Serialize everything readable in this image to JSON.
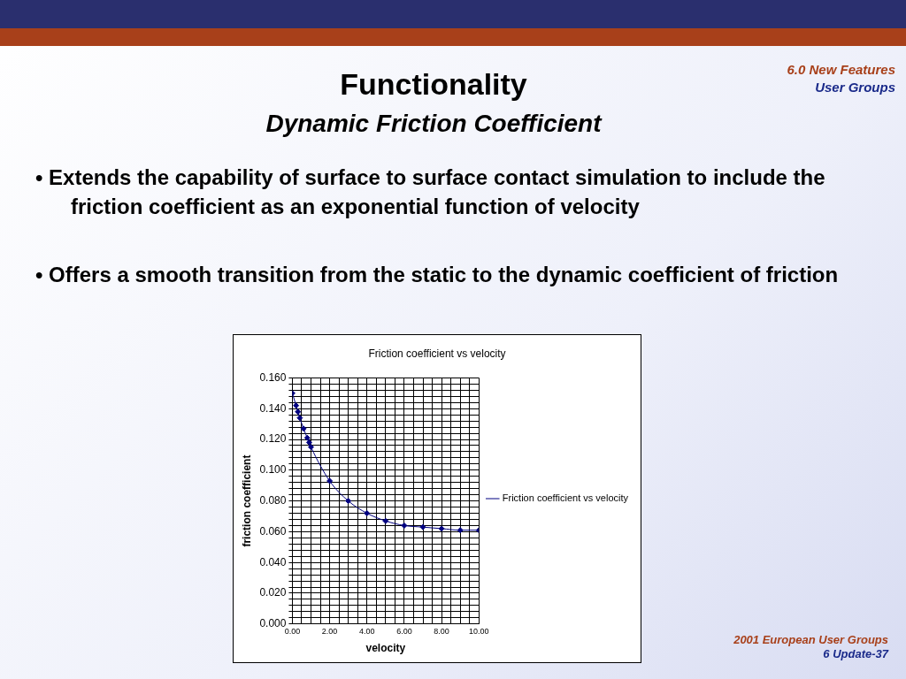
{
  "chart_data": {
    "type": "line",
    "title": "Friction coefficient vs velocity",
    "xlabel": "velocity",
    "ylabel": "friction coefficient",
    "annotations": [
      "Functionality",
      "Dynamic Friction Coefficient",
      "• Extends the capability of surface to surface contact simulation to include the friction coefficient as an exponential function of velocity",
      "• Offers a smooth transition from the static to the dynamic coefficient of friction",
      "6.0 New Features",
      "User Groups",
      "2001 European User Groups",
      "6 Update-37"
    ],
    "series": [
      {
        "name": "Friction coefficient vs velocity",
        "color": "#000080",
        "x": [
          0,
          0.2,
          0.3,
          0.4,
          0.6,
          0.8,
          0.9,
          1.0,
          2,
          3,
          4,
          5,
          6,
          7,
          8,
          9,
          10
        ],
        "values": [
          0.15,
          0.142,
          0.138,
          0.134,
          0.127,
          0.121,
          0.118,
          0.115,
          0.093,
          0.08,
          0.072,
          0.067,
          0.064,
          0.063,
          0.062,
          0.061,
          0.061
        ]
      }
    ],
    "xlim": [
      0,
      10
    ],
    "xticks": [
      {
        "value": 0,
        "label": "0.00"
      },
      {
        "value": 0.5,
        "label": null
      },
      {
        "value": 1,
        "label": null
      },
      {
        "value": 1.5,
        "label": null
      },
      {
        "value": 2,
        "label": "2.00"
      },
      {
        "value": 2.5,
        "label": null
      },
      {
        "value": 3,
        "label": null
      },
      {
        "value": 3.5,
        "label": null
      },
      {
        "value": 4,
        "label": "4.00"
      },
      {
        "value": 4.5,
        "label": null
      },
      {
        "value": 5,
        "label": null
      },
      {
        "value": 5.5,
        "label": null
      },
      {
        "value": 6,
        "label": "6.00"
      },
      {
        "value": 6.5,
        "label": null
      },
      {
        "value": 7,
        "label": null
      },
      {
        "value": 7.5,
        "label": null
      },
      {
        "value": 8,
        "label": "8.00"
      },
      {
        "value": 8.5,
        "label": null
      },
      {
        "value": 9,
        "label": null
      },
      {
        "value": 9.5,
        "label": null
      },
      {
        "value": 10,
        "label": "10.00"
      }
    ],
    "ylim": [
      0,
      0.16
    ],
    "yticks": [
      {
        "value": 0,
        "label": "0.000"
      },
      {
        "value": 0.004,
        "label": null
      },
      {
        "value": 0.008,
        "label": null
      },
      {
        "value": 0.012,
        "label": null
      },
      {
        "value": 0.016,
        "label": null
      },
      {
        "value": 0.02,
        "label": "0.020"
      },
      {
        "value": 0.024,
        "label": null
      },
      {
        "value": 0.028,
        "label": null
      },
      {
        "value": 0.032,
        "label": null
      },
      {
        "value": 0.036,
        "label": null
      },
      {
        "value": 0.04,
        "label": "0.040"
      },
      {
        "value": 0.044,
        "label": null
      },
      {
        "value": 0.048,
        "label": null
      },
      {
        "value": 0.052,
        "label": null
      },
      {
        "value": 0.056,
        "label": null
      },
      {
        "value": 0.06,
        "label": "0.060"
      },
      {
        "value": 0.064,
        "label": null
      },
      {
        "value": 0.068,
        "label": null
      },
      {
        "value": 0.072,
        "label": null
      },
      {
        "value": 0.076,
        "label": null
      },
      {
        "value": 0.08,
        "label": "0.080"
      },
      {
        "value": 0.084,
        "label": null
      },
      {
        "value": 0.088,
        "label": null
      },
      {
        "value": 0.092,
        "label": null
      },
      {
        "value": 0.096,
        "label": null
      },
      {
        "value": 0.1,
        "label": "0.100"
      },
      {
        "value": 0.104,
        "label": null
      },
      {
        "value": 0.108,
        "label": null
      },
      {
        "value": 0.112,
        "label": null
      },
      {
        "value": 0.116,
        "label": null
      },
      {
        "value": 0.12,
        "label": "0.120"
      },
      {
        "value": 0.124,
        "label": null
      },
      {
        "value": 0.128,
        "label": null
      },
      {
        "value": 0.132,
        "label": null
      },
      {
        "value": 0.136,
        "label": null
      },
      {
        "value": 0.14,
        "label": "0.140"
      },
      {
        "value": 0.144,
        "label": null
      },
      {
        "value": 0.148,
        "label": null
      },
      {
        "value": 0.152,
        "label": null
      },
      {
        "value": 0.156,
        "label": null
      },
      {
        "value": 0.16,
        "label": "0.160"
      }
    ],
    "grid": true,
    "legend": "right",
    "marker": "diamond",
    "line_style": "solid"
  }
}
